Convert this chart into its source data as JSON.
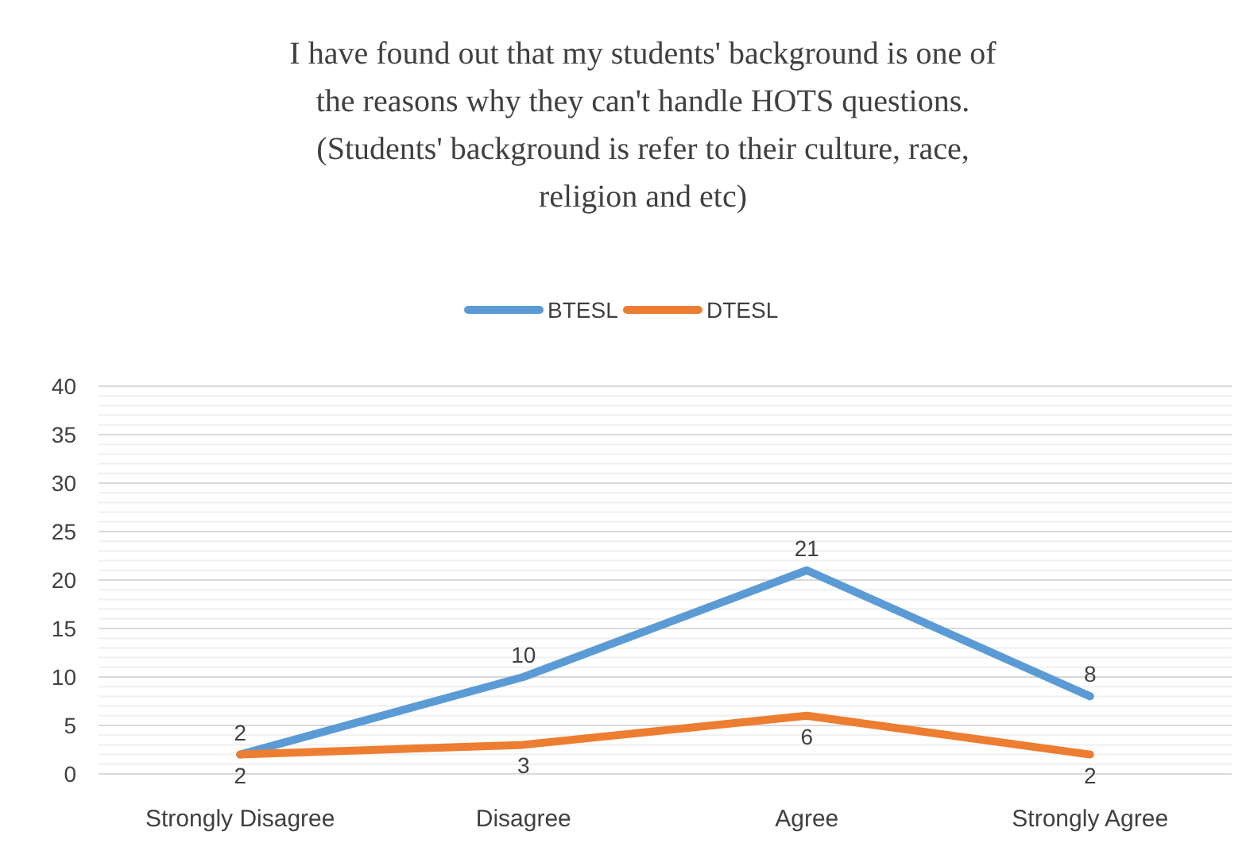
{
  "chart_data": {
    "type": "line",
    "title": "I have found out that my students' background is one of the reasons why they can't handle HOTS questions. (Students' background is refer to their culture, race, religion and etc)",
    "categories": [
      "Strongly Disagree",
      "Disagree",
      "Agree",
      "Strongly Agree"
    ],
    "series": [
      {
        "name": "BTESL",
        "color": "#5b9bd5",
        "values": [
          2,
          10,
          21,
          8
        ]
      },
      {
        "name": "DTESL",
        "color": "#ed7d31",
        "values": [
          2,
          3,
          6,
          2
        ]
      }
    ],
    "ylim": [
      0,
      40
    ],
    "yticks": [
      0,
      {
        "value": 1,
        "label": null
      },
      {
        "value": 2,
        "label": null
      },
      {
        "value": 3,
        "label": null
      },
      {
        "value": 4,
        "label": null
      },
      5,
      {
        "value": 6,
        "label": null
      },
      {
        "value": 7,
        "label": null
      },
      {
        "value": 8,
        "label": null
      },
      {
        "value": 9,
        "label": null
      },
      10,
      {
        "value": 11,
        "label": null
      },
      {
        "value": 12,
        "label": null
      },
      {
        "value": 13,
        "label": null
      },
      {
        "value": 14,
        "label": null
      },
      15,
      {
        "value": 16,
        "label": null
      },
      {
        "value": 17,
        "label": null
      },
      {
        "value": 18,
        "label": null
      },
      {
        "value": 19,
        "label": null
      },
      20,
      {
        "value": 21,
        "label": null
      },
      {
        "value": 22,
        "label": null
      },
      {
        "value": 23,
        "label": null
      },
      {
        "value": 24,
        "label": null
      },
      25,
      {
        "value": 26,
        "label": null
      },
      {
        "value": 27,
        "label": null
      },
      {
        "value": 28,
        "label": null
      },
      {
        "value": 29,
        "label": null
      },
      30,
      {
        "value": 31,
        "label": null
      },
      {
        "value": 32,
        "label": null
      },
      {
        "value": 33,
        "label": null
      },
      {
        "value": 34,
        "label": null
      },
      35,
      {
        "value": 36,
        "label": null
      },
      {
        "value": 37,
        "label": null
      },
      {
        "value": 38,
        "label": null
      },
      {
        "value": 39,
        "label": null
      },
      40
    ],
    "grid": "y",
    "legend": "top",
    "data_labels": true,
    "marker": "none",
    "line_style": "solid"
  }
}
